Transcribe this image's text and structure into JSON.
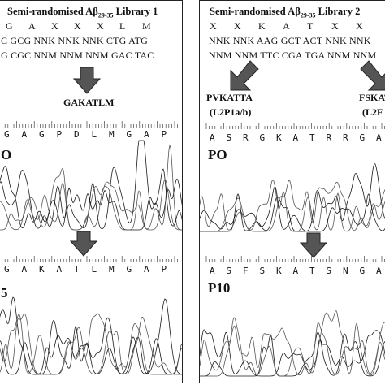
{
  "left": {
    "title": "Semi-randomised Aβ",
    "title_sub": "29-35",
    "title_suffix": " Library 1",
    "aa_row": [
      "G",
      "A",
      "X",
      "X",
      "X",
      "L",
      "M"
    ],
    "codon_row1": "C GCG NNK NNK NNK CTG ATG",
    "codon_row2": "G CGC NNM NNM NNM GAC TAC",
    "result": "GAKATLM",
    "trace1_label": "O",
    "trace1_aas": [
      "G",
      "A",
      "G",
      "P",
      "D",
      "L",
      "M",
      "G",
      "A",
      "P"
    ],
    "trace2_label": "5",
    "trace2_aas": [
      "G",
      "A",
      "K",
      "A",
      "T",
      "L",
      "M",
      "G",
      "A",
      "P"
    ]
  },
  "right": {
    "title": "Semi-randomised Aβ",
    "title_sub": "29-35",
    "title_suffix": " Library 2",
    "aa_row": [
      "X",
      "X",
      "K",
      "A",
      "T",
      "X",
      "X"
    ],
    "codon_row1": "NNK  NNK AAG GCT ACT NNK  NNK",
    "codon_row2": "NNM NNM TTC CGA TGA NNM NNM",
    "result_a": "PVKATTA",
    "result_a_sub": "(L2P1a/b)",
    "result_b": "FSKAT",
    "result_b_sub": "(L2F",
    "trace1_label": "PO",
    "trace1_aas": [
      "A",
      "S",
      "R",
      "G",
      "K",
      "A",
      "T",
      "R",
      "R",
      "G",
      "A"
    ],
    "trace2_label": "P10",
    "trace2_aas": [
      "A",
      "S",
      "F",
      "S",
      "K",
      "A",
      "T",
      "S",
      "N",
      "G",
      "A"
    ]
  },
  "colors": {
    "trace": "#1a1a1a",
    "arrow": "#555555",
    "border": "#222222"
  }
}
